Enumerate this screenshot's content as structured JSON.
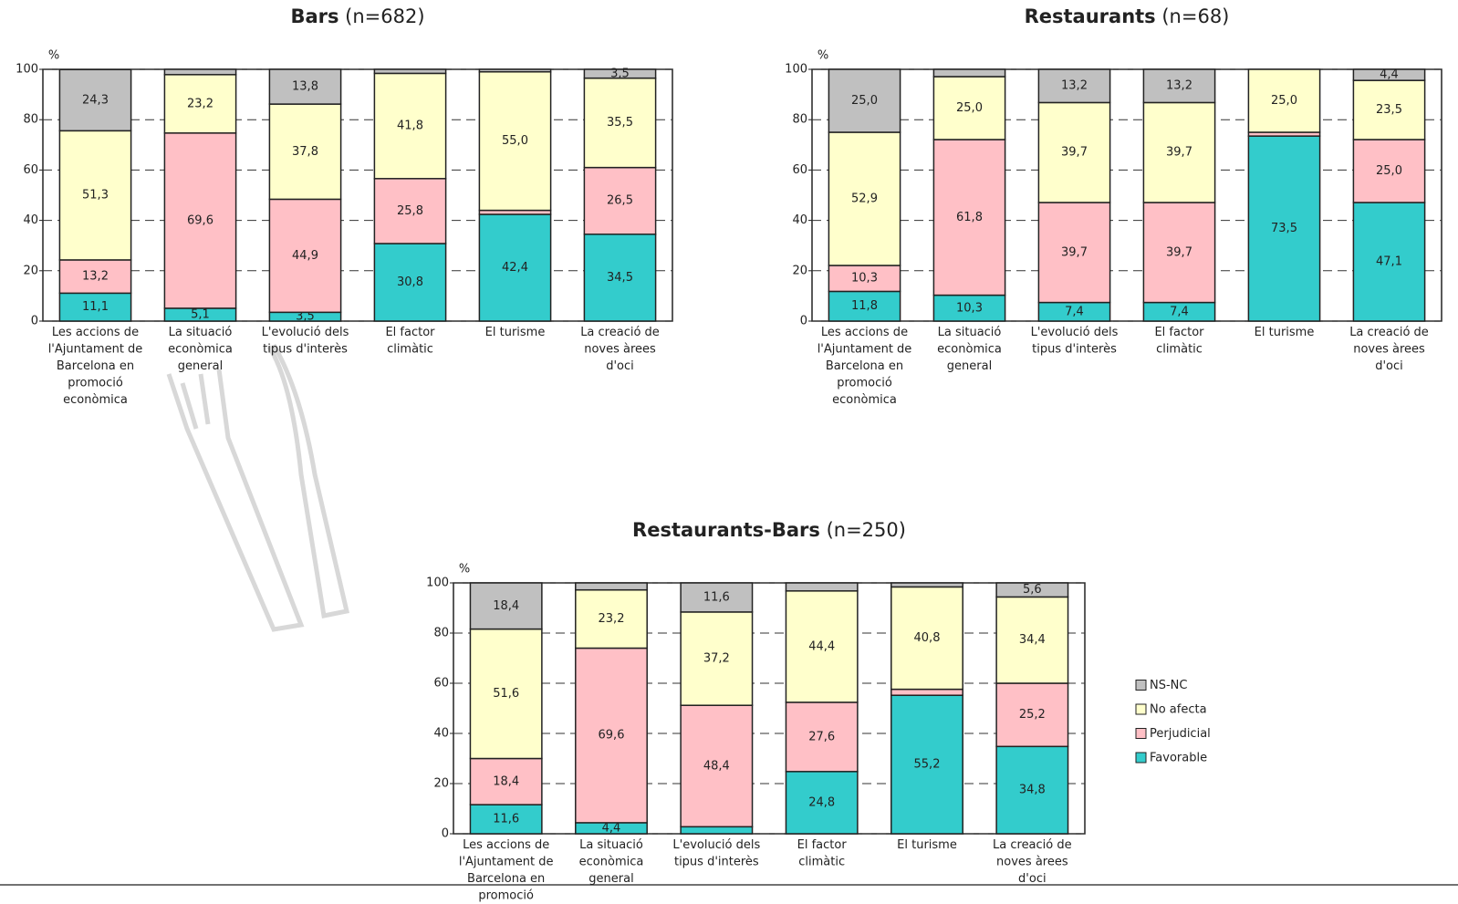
{
  "chart_data": [
    {
      "type": "stacked-bar",
      "title": "Bars",
      "subtitle": "(n=682)",
      "y_label": "%",
      "categories": [
        "Les accions de l'Ajuntament de Barcelona en promoció econòmica",
        "La situació econòmica general",
        "L'evolució dels tipus d'interès",
        "El factor climàtic",
        "El turisme",
        "La creació de noves àrees d'oci"
      ],
      "series": [
        {
          "color": "#33cccc",
          "values": [
            11.1,
            5.1,
            3.5,
            30.8,
            42.4,
            34.5
          ],
          "value_labels": [
            "11,1",
            "5,1",
            "3,5",
            "30,8",
            "42,4",
            "34,5"
          ]
        },
        {
          "color": "#ffc0c6",
          "values": [
            13.2,
            69.6,
            44.9,
            25.8,
            1.6,
            26.5
          ],
          "value_labels": [
            "13,2",
            "69,6",
            "44,9",
            "25,8",
            null,
            "26,5"
          ]
        },
        {
          "color": "#ffffcc",
          "values": [
            51.3,
            23.2,
            37.8,
            41.8,
            55.0,
            35.5
          ],
          "value_labels": [
            "51,3",
            "23,2",
            "37,8",
            "41,8",
            "55,0",
            "35,5"
          ]
        },
        {
          "color": "#c0c0c0",
          "values": [
            24.3,
            2.1,
            13.8,
            1.6,
            1.0,
            3.5
          ],
          "value_labels": [
            "24,3",
            null,
            "13,8",
            null,
            null,
            "3,5"
          ]
        }
      ],
      "ylim": [
        0,
        100
      ],
      "yticks": [
        0,
        20,
        40,
        60,
        80,
        100
      ],
      "grid": true
    },
    {
      "type": "stacked-bar",
      "title": "Restaurants",
      "subtitle": "(n=68)",
      "y_label": "%",
      "categories": [
        "Les accions de l'Ajuntament de Barcelona en promoció econòmica",
        "La situació econòmica general",
        "L'evolució dels tipus d'interès",
        "El factor climàtic",
        "El turisme",
        "La creació de noves àrees d'oci"
      ],
      "series": [
        {
          "color": "#33cccc",
          "values": [
            11.8,
            10.3,
            7.4,
            7.4,
            73.5,
            47.1
          ],
          "value_labels": [
            "11,8",
            "10,3",
            "7,4",
            "7,4",
            "73,5",
            "47,1"
          ]
        },
        {
          "color": "#ffc0c6",
          "values": [
            10.3,
            61.8,
            39.7,
            39.7,
            1.5,
            25.0
          ],
          "value_labels": [
            "10,3",
            "61,8",
            "39,7",
            "39,7",
            null,
            "25,0"
          ]
        },
        {
          "color": "#ffffcc",
          "values": [
            52.9,
            25.0,
            39.7,
            39.7,
            25.0,
            23.5
          ],
          "value_labels": [
            "52,9",
            "25,0",
            "39,7",
            "39,7",
            "25,0",
            "23,5"
          ]
        },
        {
          "color": "#c0c0c0",
          "values": [
            25.0,
            2.9,
            13.2,
            13.2,
            0,
            4.4
          ],
          "value_labels": [
            "25,0",
            null,
            "13,2",
            "13,2",
            null,
            "4,4"
          ]
        }
      ],
      "ylim": [
        0,
        100
      ],
      "yticks": [
        0,
        20,
        40,
        60,
        80,
        100
      ],
      "grid": true
    },
    {
      "type": "stacked-bar",
      "title": "Restaurants-Bars",
      "subtitle": "(n=250)",
      "y_label": "%",
      "categories": [
        "Les accions de l'Ajuntament de Barcelona en promoció econòmica",
        "La situació econòmica general",
        "L'evolució dels tipus d'interès",
        "El factor climàtic",
        "El turisme",
        "La creació de noves àrees d'oci"
      ],
      "series": [
        {
          "name": "Favorable",
          "color": "#33cccc",
          "values": [
            11.6,
            4.4,
            2.8,
            24.8,
            55.2,
            34.8
          ],
          "value_labels": [
            "11,6",
            "4,4",
            null,
            "24,8",
            "55,2",
            "34,8"
          ]
        },
        {
          "name": "Perjudicial",
          "color": "#ffc0c6",
          "values": [
            18.4,
            69.6,
            48.4,
            27.6,
            2.4,
            25.2
          ],
          "value_labels": [
            "18,4",
            "69,6",
            "48,4",
            "27,6",
            null,
            "25,2"
          ]
        },
        {
          "name": "No afecta",
          "color": "#ffffcc",
          "values": [
            51.6,
            23.2,
            37.2,
            44.4,
            40.8,
            34.4
          ],
          "value_labels": [
            "51,6",
            "23,2",
            "37,2",
            "44,4",
            "40,8",
            "34,4"
          ]
        },
        {
          "name": "NS-NC",
          "color": "#c0c0c0",
          "values": [
            18.4,
            2.8,
            11.6,
            3.2,
            1.6,
            5.6
          ],
          "value_labels": [
            "18,4",
            null,
            "11,6",
            null,
            null,
            "5,6"
          ]
        }
      ],
      "ylim": [
        0,
        100
      ],
      "yticks": [
        0,
        20,
        40,
        60,
        80,
        100
      ],
      "grid": true,
      "legend": "right"
    }
  ]
}
